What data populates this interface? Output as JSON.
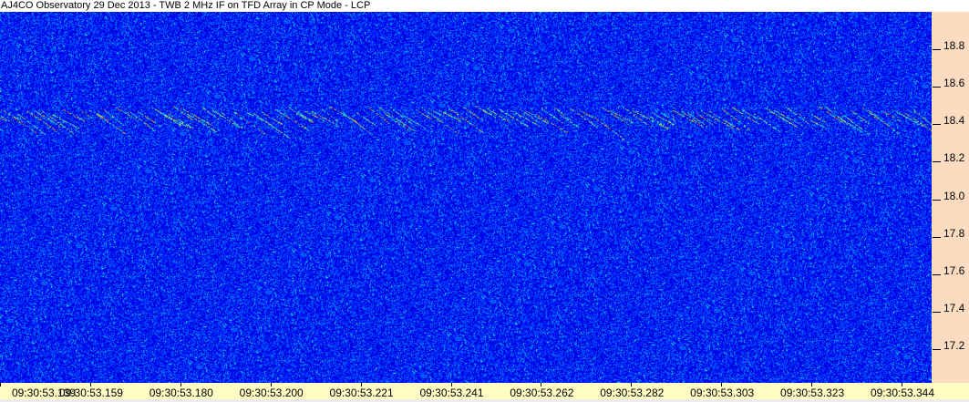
{
  "title": "AJ4CO Observatory 29 Dec 2013 - TWB 2 MHz IF on TFD Array in CP Mode - LCP",
  "chart_data": {
    "type": "heatmap",
    "title": "AJ4CO Observatory 29 Dec 2013 - TWB 2 MHz IF on TFD Array in CP Mode - LCP",
    "colormap": "jet (dark blue background, cyan/yellow/red highlights)",
    "y_axis": {
      "position": "right",
      "ticks": [
        "18.8",
        "18.6",
        "18.4",
        "18.2",
        "18.0",
        "17.8",
        "17.6",
        "17.4",
        "17.2"
      ],
      "ylim": [
        17.02,
        19.0
      ]
    },
    "x_axis": {
      "position": "bottom",
      "ticks": [
        "09:30:53.139",
        "09:30:53.159",
        "09:30:53.180",
        "09:30:53.200",
        "09:30:53.221",
        "09:30:53.241",
        "09:30:53.262",
        "09:30:53.282",
        "09:30:53.303",
        "09:30:53.323",
        "09:30:53.344"
      ]
    },
    "features": [
      {
        "type": "descending drift-burst band",
        "y_range": [
          18.35,
          18.5
        ]
      }
    ],
    "colors": {
      "background_low": "#0a2a9a",
      "mid": "#1a5cf0",
      "high": "#f0f000",
      "peak": "#e02000",
      "yaxis_bg": "#fcdcc0",
      "xaxis_bg": "#fffcc4"
    }
  }
}
